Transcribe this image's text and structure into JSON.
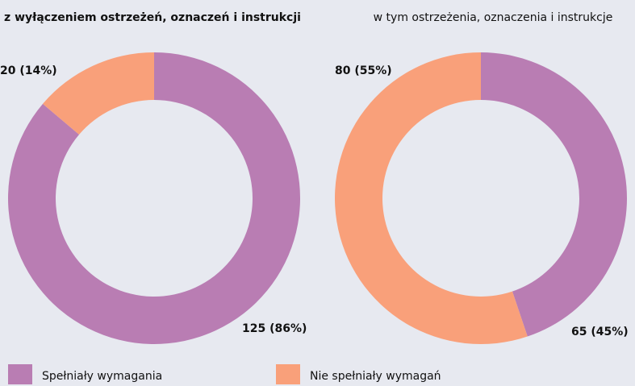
{
  "chart_data": [
    {
      "type": "donut",
      "title": "z wyłączeniem ostrzeżeń, oznaczeń i instrukcji",
      "categories": [
        "Spełniały wymagania",
        "Nie spełniały wymagań"
      ],
      "values": [
        125,
        20
      ],
      "value_labels": [
        "125 (86%)",
        "20 (14%)"
      ],
      "colors": [
        "#b97db3",
        "#f9a07a"
      ]
    },
    {
      "type": "donut",
      "title": "w tym ostrzeżenia, oznaczenia i instrukcje",
      "categories": [
        "Spełniały wymagania",
        "Nie spełniały wymagań"
      ],
      "values": [
        65,
        80
      ],
      "value_labels": [
        "65 (45%)",
        "80 (55%)"
      ],
      "colors": [
        "#b97db3",
        "#f9a07a"
      ]
    }
  ]
}
